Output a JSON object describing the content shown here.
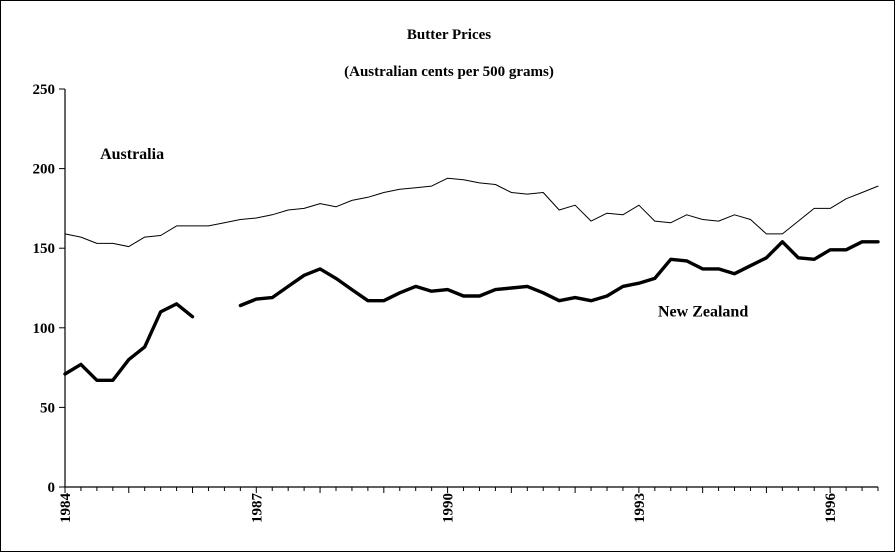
{
  "chart_data": {
    "type": "line",
    "title": "Butter Prices",
    "subtitle": "(Australian cents per 500 grams)",
    "xlabel": "",
    "ylabel": "",
    "xlim": [
      1984,
      1996.75
    ],
    "ylim": [
      0,
      250
    ],
    "y_ticks": [
      0,
      50,
      100,
      150,
      200,
      250
    ],
    "x_ticks": [
      1984,
      1987,
      1990,
      1993,
      1996
    ],
    "x_tick_labels": [
      "1984",
      "1987",
      "1990",
      "1993",
      "1996"
    ],
    "grid": false,
    "legend": "none",
    "series": [
      {
        "name": "Australia",
        "color": "#000000",
        "line_style": "thin",
        "points": [
          [
            1984.0,
            159
          ],
          [
            1984.25,
            157
          ],
          [
            1984.5,
            153
          ],
          [
            1984.75,
            153
          ],
          [
            1985.0,
            151
          ],
          [
            1985.25,
            157
          ],
          [
            1985.5,
            158
          ],
          [
            1985.75,
            164
          ],
          [
            1986.0,
            164
          ],
          [
            1986.25,
            164
          ],
          [
            1986.5,
            166
          ],
          [
            1986.75,
            168
          ],
          [
            1987.0,
            169
          ],
          [
            1987.25,
            171
          ],
          [
            1987.5,
            174
          ],
          [
            1987.75,
            175
          ],
          [
            1988.0,
            178
          ],
          [
            1988.25,
            176
          ],
          [
            1988.5,
            180
          ],
          [
            1988.75,
            182
          ],
          [
            1989.0,
            185
          ],
          [
            1989.25,
            187
          ],
          [
            1989.5,
            188
          ],
          [
            1989.75,
            189
          ],
          [
            1990.0,
            194
          ],
          [
            1990.25,
            193
          ],
          [
            1990.5,
            191
          ],
          [
            1990.75,
            190
          ],
          [
            1991.0,
            185
          ],
          [
            1991.25,
            184
          ],
          [
            1991.5,
            185
          ],
          [
            1991.75,
            174
          ],
          [
            1992.0,
            177
          ],
          [
            1992.25,
            167
          ],
          [
            1992.5,
            172
          ],
          [
            1992.75,
            171
          ],
          [
            1993.0,
            177
          ],
          [
            1993.25,
            167
          ],
          [
            1993.5,
            166
          ],
          [
            1993.75,
            171
          ],
          [
            1994.0,
            168
          ],
          [
            1994.25,
            167
          ],
          [
            1994.5,
            171
          ],
          [
            1994.75,
            168
          ],
          [
            1995.0,
            159
          ],
          [
            1995.25,
            159
          ],
          [
            1995.5,
            167
          ],
          [
            1995.75,
            175
          ],
          [
            1996.0,
            175
          ],
          [
            1996.25,
            181
          ],
          [
            1996.5,
            185
          ],
          [
            1996.75,
            189
          ]
        ]
      },
      {
        "name": "New Zealand",
        "color": "#000000",
        "line_style": "thick",
        "segments": [
          [
            [
              1984.0,
              71
            ],
            [
              1984.25,
              77
            ],
            [
              1984.5,
              67
            ],
            [
              1984.75,
              67
            ],
            [
              1985.0,
              80
            ],
            [
              1985.25,
              88
            ],
            [
              1985.5,
              110
            ],
            [
              1985.75,
              115
            ],
            [
              1986.0,
              107
            ]
          ],
          [
            [
              1986.75,
              114
            ],
            [
              1987.0,
              118
            ],
            [
              1987.25,
              119
            ],
            [
              1987.5,
              126
            ],
            [
              1987.75,
              133
            ],
            [
              1988.0,
              137
            ],
            [
              1988.25,
              131
            ],
            [
              1988.5,
              124
            ],
            [
              1988.75,
              117
            ],
            [
              1989.0,
              117
            ],
            [
              1989.25,
              122
            ],
            [
              1989.5,
              126
            ],
            [
              1989.75,
              123
            ],
            [
              1990.0,
              124
            ],
            [
              1990.25,
              120
            ],
            [
              1990.5,
              120
            ],
            [
              1990.75,
              124
            ],
            [
              1991.0,
              125
            ],
            [
              1991.25,
              126
            ],
            [
              1991.5,
              122
            ],
            [
              1991.75,
              117
            ],
            [
              1992.0,
              119
            ],
            [
              1992.25,
              117
            ],
            [
              1992.5,
              120
            ],
            [
              1992.75,
              126
            ],
            [
              1993.0,
              128
            ],
            [
              1993.25,
              131
            ],
            [
              1993.5,
              143
            ],
            [
              1993.75,
              142
            ],
            [
              1994.0,
              137
            ],
            [
              1994.25,
              137
            ],
            [
              1994.5,
              134
            ],
            [
              1994.75,
              139
            ],
            [
              1995.0,
              144
            ],
            [
              1995.25,
              154
            ],
            [
              1995.5,
              144
            ],
            [
              1995.75,
              143
            ],
            [
              1996.0,
              149
            ],
            [
              1996.25,
              149
            ],
            [
              1996.5,
              154
            ],
            [
              1996.75,
              154
            ]
          ]
        ]
      }
    ],
    "annotations": [
      {
        "text": "Australia",
        "series": "Australia",
        "x": 1984.55,
        "y": 206
      },
      {
        "text": "New Zealand",
        "series": "New Zealand",
        "x": 1993.3,
        "y": 107
      }
    ]
  }
}
